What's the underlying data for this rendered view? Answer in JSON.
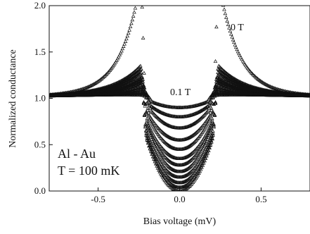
{
  "chart_data": {
    "type": "scatter",
    "title": "",
    "xlabel": "Bias voltage (mV)",
    "ylabel": "Normalized conductance",
    "xlim": [
      -0.8,
      0.8
    ],
    "ylim": [
      0.0,
      2.0
    ],
    "xticks": [
      -0.5,
      0.0,
      0.5
    ],
    "xtick_labels": [
      "-0.5",
      "0.0",
      "0.5"
    ],
    "yticks": [
      0.0,
      0.5,
      1.0,
      1.5,
      2.0
    ],
    "ytick_labels": [
      "0.0",
      "0.5",
      "1.0",
      "1.5",
      "2.0"
    ],
    "grid": false,
    "legend": "none",
    "marker": "open-triangle",
    "marker_color": "#111111",
    "annotations": {
      "label_0T": "0 T",
      "label_01T": "0.1 T",
      "sample": "Al - Au",
      "temperature": "T = 100 mK"
    },
    "series": [
      {
        "field_T": 0.0,
        "center": 0.0,
        "peak": 2.25,
        "edge": 0.24
      },
      {
        "field_T": null,
        "center": 0.04,
        "peak": 1.35,
        "edge": 0.24
      },
      {
        "field_T": null,
        "center": 0.09,
        "peak": 1.31,
        "edge": 0.24
      },
      {
        "field_T": null,
        "center": 0.15,
        "peak": 1.27,
        "edge": 0.24
      },
      {
        "field_T": null,
        "center": 0.21,
        "peak": 1.23,
        "edge": 0.23
      },
      {
        "field_T": null,
        "center": 0.28,
        "peak": 1.2,
        "edge": 0.23
      },
      {
        "field_T": null,
        "center": 0.35,
        "peak": 1.17,
        "edge": 0.23
      },
      {
        "field_T": null,
        "center": 0.45,
        "peak": 1.13,
        "edge": 0.22
      },
      {
        "field_T": null,
        "center": 0.55,
        "peak": 1.1,
        "edge": 0.22
      },
      {
        "field_T": null,
        "center": 0.68,
        "peak": 1.07,
        "edge": 0.21
      },
      {
        "field_T": null,
        "center": 0.8,
        "peak": 1.05,
        "edge": 0.21
      },
      {
        "field_T": 0.1,
        "center": 0.9,
        "peak": 1.03,
        "edge": 0.2
      }
    ]
  }
}
